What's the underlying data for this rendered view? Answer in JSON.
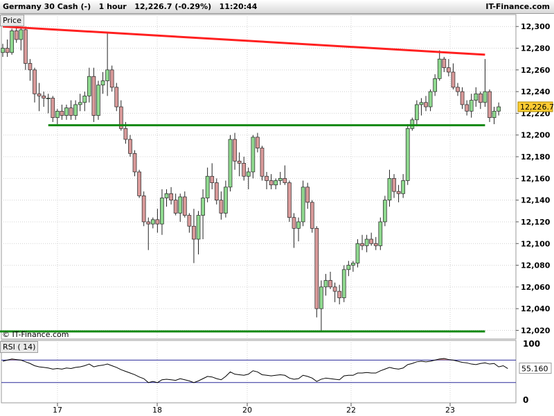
{
  "header": {
    "instrument": "Germany 30 Cash (-)",
    "timeframe": "1 hour",
    "last_change": "12,226.7 (-0.29%)",
    "time": "11:20:44",
    "site": "IT-Finance.com"
  },
  "price_panel": {
    "label": "Price",
    "watermark": "© IT-Finance.com",
    "last_value_label": "12,226.7"
  },
  "rsi_panel": {
    "label": "RSI ( 14)",
    "last_value_label": "55.160"
  },
  "colors": {
    "up": "#8fd98f",
    "down": "#d99a9a",
    "trend_resistance": "#ff2020",
    "support": "#118811",
    "rsi_line": "#000000",
    "rsi_band": "#2a2a9a",
    "rsi_fill": "#c89090"
  },
  "chart_data": [
    {
      "type": "candlestick",
      "title": "Germany 30 Cash (-) 1 hour",
      "x_tick_labels": [
        "17",
        "18",
        "20",
        "22",
        "23"
      ],
      "y_ticks": [
        12020,
        12040,
        12060,
        12080,
        12100,
        12120,
        12140,
        12160,
        12180,
        12200,
        12220,
        12240,
        12260,
        12280,
        12300
      ],
      "y_tick_labels": [
        "12,020",
        "12,040",
        "12,060",
        "12,080",
        "12,100",
        "12,120",
        "12,140",
        "12,160",
        "12,180",
        "12,200",
        "12,220",
        "12,240",
        "12,260",
        "12,280",
        "12,300"
      ],
      "ylim": [
        12012,
        12311
      ],
      "grid": true,
      "trendlines": [
        {
          "name": "resistance",
          "from": [
            0,
            12300
          ],
          "to": [
            106,
            12274
          ]
        },
        {
          "name": "support",
          "from": [
            10,
            12209
          ],
          "to": [
            106,
            12209
          ]
        },
        {
          "name": "support-low",
          "from": [
            -2,
            12019
          ],
          "to": [
            106,
            12019
          ]
        }
      ],
      "candles": [
        {
          "o": 12276,
          "h": 12284,
          "l": 12272,
          "c": 12280
        },
        {
          "o": 12280,
          "h": 12288,
          "l": 12272,
          "c": 12276
        },
        {
          "o": 12276,
          "h": 12298,
          "l": 12274,
          "c": 12296
        },
        {
          "o": 12296,
          "h": 12300,
          "l": 12285,
          "c": 12288
        },
        {
          "o": 12288,
          "h": 12299,
          "l": 12278,
          "c": 12297
        },
        {
          "o": 12297,
          "h": 12300,
          "l": 12260,
          "c": 12266
        },
        {
          "o": 12266,
          "h": 12270,
          "l": 12250,
          "c": 12260
        },
        {
          "o": 12260,
          "h": 12262,
          "l": 12230,
          "c": 12238
        },
        {
          "o": 12238,
          "h": 12248,
          "l": 12222,
          "c": 12236
        },
        {
          "o": 12236,
          "h": 12240,
          "l": 12226,
          "c": 12234
        },
        {
          "o": 12234,
          "h": 12238,
          "l": 12220,
          "c": 12234
        },
        {
          "o": 12234,
          "h": 12236,
          "l": 12212,
          "c": 12216
        },
        {
          "o": 12216,
          "h": 12224,
          "l": 12210,
          "c": 12222
        },
        {
          "o": 12222,
          "h": 12228,
          "l": 12214,
          "c": 12218
        },
        {
          "o": 12218,
          "h": 12228,
          "l": 12214,
          "c": 12225
        },
        {
          "o": 12225,
          "h": 12232,
          "l": 12214,
          "c": 12218
        },
        {
          "o": 12218,
          "h": 12232,
          "l": 12214,
          "c": 12228
        },
        {
          "o": 12228,
          "h": 12238,
          "l": 12222,
          "c": 12230
        },
        {
          "o": 12230,
          "h": 12240,
          "l": 12222,
          "c": 12236
        },
        {
          "o": 12236,
          "h": 12262,
          "l": 12230,
          "c": 12254
        },
        {
          "o": 12254,
          "h": 12262,
          "l": 12212,
          "c": 12218
        },
        {
          "o": 12218,
          "h": 12250,
          "l": 12214,
          "c": 12246
        },
        {
          "o": 12246,
          "h": 12258,
          "l": 12238,
          "c": 12250
        },
        {
          "o": 12250,
          "h": 12294,
          "l": 12236,
          "c": 12260
        },
        {
          "o": 12260,
          "h": 12264,
          "l": 12240,
          "c": 12244
        },
        {
          "o": 12244,
          "h": 12248,
          "l": 12222,
          "c": 12226
        },
        {
          "o": 12226,
          "h": 12232,
          "l": 12204,
          "c": 12206
        },
        {
          "o": 12206,
          "h": 12212,
          "l": 12192,
          "c": 12196
        },
        {
          "o": 12196,
          "h": 12200,
          "l": 12180,
          "c": 12183
        },
        {
          "o": 12183,
          "h": 12186,
          "l": 12162,
          "c": 12166
        },
        {
          "o": 12166,
          "h": 12168,
          "l": 12142,
          "c": 12144
        },
        {
          "o": 12144,
          "h": 12148,
          "l": 12116,
          "c": 12120
        },
        {
          "o": 12120,
          "h": 12124,
          "l": 12094,
          "c": 12118
        },
        {
          "o": 12118,
          "h": 12124,
          "l": 12114,
          "c": 12122
        },
        {
          "o": 12122,
          "h": 12132,
          "l": 12110,
          "c": 12118
        },
        {
          "o": 12118,
          "h": 12150,
          "l": 12108,
          "c": 12142
        },
        {
          "o": 12142,
          "h": 12150,
          "l": 12134,
          "c": 12146
        },
        {
          "o": 12146,
          "h": 12152,
          "l": 12136,
          "c": 12140
        },
        {
          "o": 12140,
          "h": 12146,
          "l": 12126,
          "c": 12128
        },
        {
          "o": 12128,
          "h": 12146,
          "l": 12120,
          "c": 12143
        },
        {
          "o": 12143,
          "h": 12148,
          "l": 12124,
          "c": 12126
        },
        {
          "o": 12126,
          "h": 12128,
          "l": 12110,
          "c": 12116
        },
        {
          "o": 12116,
          "h": 12132,
          "l": 12082,
          "c": 12104
        },
        {
          "o": 12104,
          "h": 12130,
          "l": 12090,
          "c": 12126
        },
        {
          "o": 12126,
          "h": 12150,
          "l": 12104,
          "c": 12142
        },
        {
          "o": 12142,
          "h": 12170,
          "l": 12138,
          "c": 12162
        },
        {
          "o": 12162,
          "h": 12174,
          "l": 12150,
          "c": 12156
        },
        {
          "o": 12156,
          "h": 12160,
          "l": 12136,
          "c": 12140
        },
        {
          "o": 12140,
          "h": 12148,
          "l": 12122,
          "c": 12128
        },
        {
          "o": 12128,
          "h": 12158,
          "l": 12124,
          "c": 12152
        },
        {
          "o": 12152,
          "h": 12200,
          "l": 12148,
          "c": 12196
        },
        {
          "o": 12196,
          "h": 12202,
          "l": 12168,
          "c": 12176
        },
        {
          "o": 12176,
          "h": 12184,
          "l": 12162,
          "c": 12174
        },
        {
          "o": 12174,
          "h": 12180,
          "l": 12158,
          "c": 12162
        },
        {
          "o": 12162,
          "h": 12170,
          "l": 12150,
          "c": 12166
        },
        {
          "o": 12166,
          "h": 12200,
          "l": 12160,
          "c": 12198
        },
        {
          "o": 12198,
          "h": 12202,
          "l": 12184,
          "c": 12188
        },
        {
          "o": 12188,
          "h": 12190,
          "l": 12158,
          "c": 12162
        },
        {
          "o": 12162,
          "h": 12166,
          "l": 12150,
          "c": 12158
        },
        {
          "o": 12158,
          "h": 12164,
          "l": 12150,
          "c": 12154
        },
        {
          "o": 12154,
          "h": 12160,
          "l": 12150,
          "c": 12158
        },
        {
          "o": 12158,
          "h": 12166,
          "l": 12154,
          "c": 12160
        },
        {
          "o": 12160,
          "h": 12172,
          "l": 12154,
          "c": 12156
        },
        {
          "o": 12156,
          "h": 12158,
          "l": 12120,
          "c": 12124
        },
        {
          "o": 12124,
          "h": 12128,
          "l": 12096,
          "c": 12114
        },
        {
          "o": 12114,
          "h": 12124,
          "l": 12102,
          "c": 12120
        },
        {
          "o": 12120,
          "h": 12158,
          "l": 12116,
          "c": 12152
        },
        {
          "o": 12152,
          "h": 12156,
          "l": 12132,
          "c": 12138
        },
        {
          "o": 12138,
          "h": 12140,
          "l": 12110,
          "c": 12114
        },
        {
          "o": 12114,
          "h": 12116,
          "l": 12032,
          "c": 12040
        },
        {
          "o": 12040,
          "h": 12066,
          "l": 12020,
          "c": 12060
        },
        {
          "o": 12060,
          "h": 12072,
          "l": 12052,
          "c": 12066
        },
        {
          "o": 12066,
          "h": 12074,
          "l": 12058,
          "c": 12060
        },
        {
          "o": 12060,
          "h": 12064,
          "l": 12046,
          "c": 12056
        },
        {
          "o": 12056,
          "h": 12062,
          "l": 12044,
          "c": 12050
        },
        {
          "o": 12050,
          "h": 12080,
          "l": 12046,
          "c": 12076
        },
        {
          "o": 12076,
          "h": 12084,
          "l": 12070,
          "c": 12080
        },
        {
          "o": 12080,
          "h": 12084,
          "l": 12074,
          "c": 12082
        },
        {
          "o": 12082,
          "h": 12104,
          "l": 12078,
          "c": 12100
        },
        {
          "o": 12100,
          "h": 12108,
          "l": 12094,
          "c": 12098
        },
        {
          "o": 12098,
          "h": 12108,
          "l": 12092,
          "c": 12104
        },
        {
          "o": 12104,
          "h": 12110,
          "l": 12098,
          "c": 12100
        },
        {
          "o": 12100,
          "h": 12106,
          "l": 12094,
          "c": 12098
        },
        {
          "o": 12098,
          "h": 12124,
          "l": 12094,
          "c": 12120
        },
        {
          "o": 12120,
          "h": 12144,
          "l": 12116,
          "c": 12140
        },
        {
          "o": 12140,
          "h": 12168,
          "l": 12134,
          "c": 12160
        },
        {
          "o": 12160,
          "h": 12164,
          "l": 12142,
          "c": 12148
        },
        {
          "o": 12148,
          "h": 12154,
          "l": 12138,
          "c": 12146
        },
        {
          "o": 12146,
          "h": 12164,
          "l": 12142,
          "c": 12158
        },
        {
          "o": 12158,
          "h": 12210,
          "l": 12154,
          "c": 12206
        },
        {
          "o": 12206,
          "h": 12216,
          "l": 12204,
          "c": 12214
        },
        {
          "o": 12214,
          "h": 12232,
          "l": 12208,
          "c": 12228
        },
        {
          "o": 12228,
          "h": 12234,
          "l": 12218,
          "c": 12230
        },
        {
          "o": 12230,
          "h": 12236,
          "l": 12222,
          "c": 12226
        },
        {
          "o": 12226,
          "h": 12242,
          "l": 12222,
          "c": 12240
        },
        {
          "o": 12240,
          "h": 12256,
          "l": 12236,
          "c": 12252
        },
        {
          "o": 12252,
          "h": 12278,
          "l": 12250,
          "c": 12270
        },
        {
          "o": 12270,
          "h": 12272,
          "l": 12258,
          "c": 12262
        },
        {
          "o": 12262,
          "h": 12270,
          "l": 12254,
          "c": 12258
        },
        {
          "o": 12258,
          "h": 12266,
          "l": 12242,
          "c": 12244
        },
        {
          "o": 12244,
          "h": 12248,
          "l": 12236,
          "c": 12240
        },
        {
          "o": 12240,
          "h": 12244,
          "l": 12224,
          "c": 12228
        },
        {
          "o": 12228,
          "h": 12232,
          "l": 12218,
          "c": 12222
        },
        {
          "o": 12222,
          "h": 12238,
          "l": 12216,
          "c": 12232
        },
        {
          "o": 12232,
          "h": 12244,
          "l": 12226,
          "c": 12238
        },
        {
          "o": 12238,
          "h": 12240,
          "l": 12224,
          "c": 12230
        },
        {
          "o": 12230,
          "h": 12270,
          "l": 12226,
          "c": 12240
        },
        {
          "o": 12240,
          "h": 12242,
          "l": 12212,
          "c": 12216
        },
        {
          "o": 12216,
          "h": 12226,
          "l": 12210,
          "c": 12222
        },
        {
          "o": 12222,
          "h": 12230,
          "l": 12218,
          "c": 12226
        }
      ]
    },
    {
      "type": "line",
      "title": "RSI ( 14)",
      "y_ticks": [
        0,
        100
      ],
      "y_tick_labels": [
        "0",
        "100"
      ],
      "ylim": [
        -6,
        105
      ],
      "bands": [
        30,
        70
      ],
      "values": [
        68,
        70,
        72,
        71,
        70,
        67,
        64,
        60,
        58,
        57,
        56,
        54,
        55,
        54,
        56,
        55,
        57,
        58,
        60,
        63,
        58,
        60,
        61,
        63,
        60,
        57,
        53,
        50,
        47,
        44,
        40,
        37,
        30,
        32,
        30,
        35,
        36,
        35,
        34,
        37,
        35,
        33,
        30,
        33,
        37,
        41,
        40,
        37,
        35,
        41,
        49,
        45,
        44,
        43,
        45,
        51,
        49,
        44,
        43,
        42,
        43,
        44,
        43,
        38,
        36,
        37,
        43,
        41,
        38,
        32,
        36,
        38,
        37,
        36,
        35,
        42,
        43,
        43,
        47,
        47,
        48,
        47,
        47,
        51,
        54,
        57,
        55,
        54,
        56,
        62,
        64,
        67,
        68,
        67,
        68,
        70,
        72,
        73,
        71,
        70,
        68,
        66,
        65,
        63,
        62,
        64,
        65,
        63,
        64,
        58,
        60,
        55
      ]
    }
  ]
}
